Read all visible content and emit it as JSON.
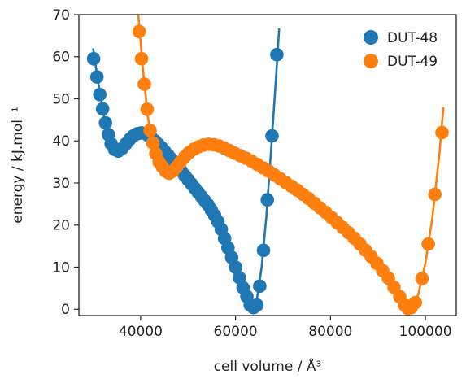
{
  "chart_data": {
    "type": "scatter",
    "xlabel": "cell volume / Å³",
    "ylabel": "energy / kJ.mol⁻¹",
    "xlim": [
      27000,
      106500
    ],
    "ylim": [
      -1.5,
      70
    ],
    "xticks": [
      40000,
      60000,
      80000,
      100000
    ],
    "xtick_labels": [
      "40000",
      "60000",
      "80000",
      "100000"
    ],
    "yticks": [
      0,
      10,
      20,
      30,
      40,
      50,
      60,
      70
    ],
    "ytick_labels": [
      "0",
      "10",
      "20",
      "30",
      "40",
      "50",
      "60",
      "70"
    ],
    "grid": false,
    "legend_position": "top-right",
    "series": [
      {
        "name": "DUT-48",
        "color": "#1f77b4",
        "points": [
          [
            30100,
            59.5
          ],
          [
            30800,
            55.2
          ],
          [
            31400,
            51.0
          ],
          [
            32000,
            47.6
          ],
          [
            32600,
            44.3
          ],
          [
            33200,
            41.5
          ],
          [
            33800,
            39.3
          ],
          [
            34500,
            38.0
          ],
          [
            35300,
            37.6
          ],
          [
            36100,
            38.2
          ],
          [
            36900,
            39.3
          ],
          [
            37700,
            40.4
          ],
          [
            38500,
            41.2
          ],
          [
            39300,
            41.7
          ],
          [
            40100,
            41.9
          ],
          [
            40900,
            41.8
          ],
          [
            41600,
            41.3
          ],
          [
            42300,
            40.7
          ],
          [
            43000,
            40.0
          ],
          [
            43700,
            39.2
          ],
          [
            44400,
            38.4
          ],
          [
            45100,
            37.5
          ],
          [
            45800,
            36.6
          ],
          [
            46500,
            35.7
          ],
          [
            47200,
            34.8
          ],
          [
            47900,
            33.8
          ],
          [
            48600,
            32.8
          ],
          [
            49300,
            31.8
          ],
          [
            50000,
            30.8
          ],
          [
            50700,
            29.8
          ],
          [
            51400,
            28.8
          ],
          [
            52100,
            27.8
          ],
          [
            52800,
            26.8
          ],
          [
            53500,
            25.8
          ],
          [
            54200,
            24.8
          ],
          [
            54900,
            23.6
          ],
          [
            55600,
            22.3
          ],
          [
            56300,
            20.8
          ],
          [
            57000,
            19.0
          ],
          [
            57700,
            16.8
          ],
          [
            58400,
            14.6
          ],
          [
            59200,
            12.3
          ],
          [
            60000,
            10.0
          ],
          [
            60800,
            7.5
          ],
          [
            61600,
            5.1
          ],
          [
            62400,
            3.0
          ],
          [
            63100,
            1.0
          ],
          [
            63800,
            0.4
          ],
          [
            64500,
            1.0
          ],
          [
            65100,
            5.5
          ],
          [
            65900,
            14.0
          ],
          [
            66700,
            26.0
          ],
          [
            67700,
            41.2
          ],
          [
            68700,
            60.5
          ]
        ],
        "fit_line": [
          [
            30000,
            62.0
          ],
          [
            31000,
            54.5
          ],
          [
            32000,
            47.5
          ],
          [
            33000,
            42.0
          ],
          [
            34000,
            38.8
          ],
          [
            35000,
            37.6
          ],
          [
            36000,
            38.2
          ],
          [
            37000,
            39.5
          ],
          [
            38000,
            40.8
          ],
          [
            39000,
            41.6
          ],
          [
            40000,
            41.9
          ],
          [
            41000,
            41.6
          ],
          [
            42000,
            40.8
          ],
          [
            44000,
            38.8
          ],
          [
            46000,
            36.3
          ],
          [
            48000,
            33.5
          ],
          [
            50000,
            30.8
          ],
          [
            52000,
            27.8
          ],
          [
            54000,
            25.1
          ],
          [
            55500,
            22.6
          ],
          [
            57000,
            19.0
          ],
          [
            58500,
            14.2
          ],
          [
            60000,
            9.8
          ],
          [
            61500,
            5.5
          ],
          [
            62500,
            2.7
          ],
          [
            63300,
            0.6
          ],
          [
            63800,
            0.0
          ],
          [
            64500,
            2.5
          ],
          [
            65500,
            10.0
          ],
          [
            66500,
            22.0
          ],
          [
            67500,
            38.0
          ],
          [
            68500,
            54.5
          ],
          [
            69200,
            66.7
          ]
        ]
      },
      {
        "name": "DUT-49",
        "color": "#ff7f0e",
        "points": [
          [
            39700,
            66.0
          ],
          [
            40200,
            59.5
          ],
          [
            40800,
            53.5
          ],
          [
            41400,
            47.5
          ],
          [
            42000,
            42.5
          ],
          [
            42600,
            39.5
          ],
          [
            43200,
            37.0
          ],
          [
            43900,
            35.0
          ],
          [
            44600,
            33.8
          ],
          [
            45300,
            32.8
          ],
          [
            46000,
            32.3
          ],
          [
            46800,
            32.8
          ],
          [
            47600,
            33.8
          ],
          [
            48400,
            35.0
          ],
          [
            49300,
            36.2
          ],
          [
            50200,
            37.2
          ],
          [
            51200,
            38.0
          ],
          [
            52200,
            38.6
          ],
          [
            53200,
            39.0
          ],
          [
            54300,
            39.2
          ],
          [
            55400,
            39.1
          ],
          [
            56500,
            38.8
          ],
          [
            57600,
            38.3
          ],
          [
            58700,
            37.7
          ],
          [
            59800,
            37.1
          ],
          [
            61000,
            36.5
          ],
          [
            62200,
            35.9
          ],
          [
            63400,
            35.2
          ],
          [
            64600,
            34.4
          ],
          [
            65800,
            33.6
          ],
          [
            67000,
            32.8
          ],
          [
            68200,
            31.9
          ],
          [
            69400,
            31.0
          ],
          [
            70600,
            30.1
          ],
          [
            71800,
            29.2
          ],
          [
            73000,
            28.3
          ],
          [
            74200,
            27.3
          ],
          [
            75400,
            26.3
          ],
          [
            76600,
            25.2
          ],
          [
            77800,
            24.1
          ],
          [
            79000,
            23.0
          ],
          [
            80200,
            21.8
          ],
          [
            81400,
            20.6
          ],
          [
            82600,
            19.4
          ],
          [
            83800,
            18.2
          ],
          [
            85000,
            16.9
          ],
          [
            86200,
            15.5
          ],
          [
            87400,
            14.0
          ],
          [
            88600,
            12.5
          ],
          [
            89800,
            10.9
          ],
          [
            91000,
            9.2
          ],
          [
            92200,
            7.4
          ],
          [
            93400,
            5.2
          ],
          [
            94600,
            3.0
          ],
          [
            95600,
            1.0
          ],
          [
            96300,
            0.2
          ],
          [
            97000,
            0.4
          ],
          [
            97900,
            1.6
          ],
          [
            99300,
            7.3
          ],
          [
            100600,
            15.5
          ],
          [
            102000,
            27.3
          ],
          [
            103500,
            42.0
          ]
        ],
        "fit_line": [
          [
            39500,
            70.0
          ],
          [
            40500,
            57.0
          ],
          [
            41500,
            46.0
          ],
          [
            42500,
            39.0
          ],
          [
            43500,
            35.6
          ],
          [
            44500,
            33.6
          ],
          [
            45500,
            32.6
          ],
          [
            46500,
            32.6
          ],
          [
            47500,
            33.6
          ],
          [
            48500,
            35.0
          ],
          [
            50000,
            36.8
          ],
          [
            52000,
            38.3
          ],
          [
            54000,
            39.0
          ],
          [
            56000,
            38.8
          ],
          [
            58000,
            38.0
          ],
          [
            60000,
            37.0
          ],
          [
            63000,
            35.3
          ],
          [
            66000,
            33.5
          ],
          [
            69000,
            31.3
          ],
          [
            72000,
            29.0
          ],
          [
            75000,
            26.6
          ],
          [
            78000,
            23.9
          ],
          [
            81000,
            21.0
          ],
          [
            84000,
            18.0
          ],
          [
            87000,
            14.5
          ],
          [
            90000,
            10.6
          ],
          [
            92500,
            6.8
          ],
          [
            94500,
            3.2
          ],
          [
            95800,
            0.8
          ],
          [
            96400,
            0.0
          ],
          [
            97300,
            0.6
          ],
          [
            98500,
            3.5
          ],
          [
            100000,
            11.0
          ],
          [
            101500,
            22.0
          ],
          [
            103000,
            37.5
          ],
          [
            103800,
            48.0
          ]
        ]
      }
    ]
  }
}
